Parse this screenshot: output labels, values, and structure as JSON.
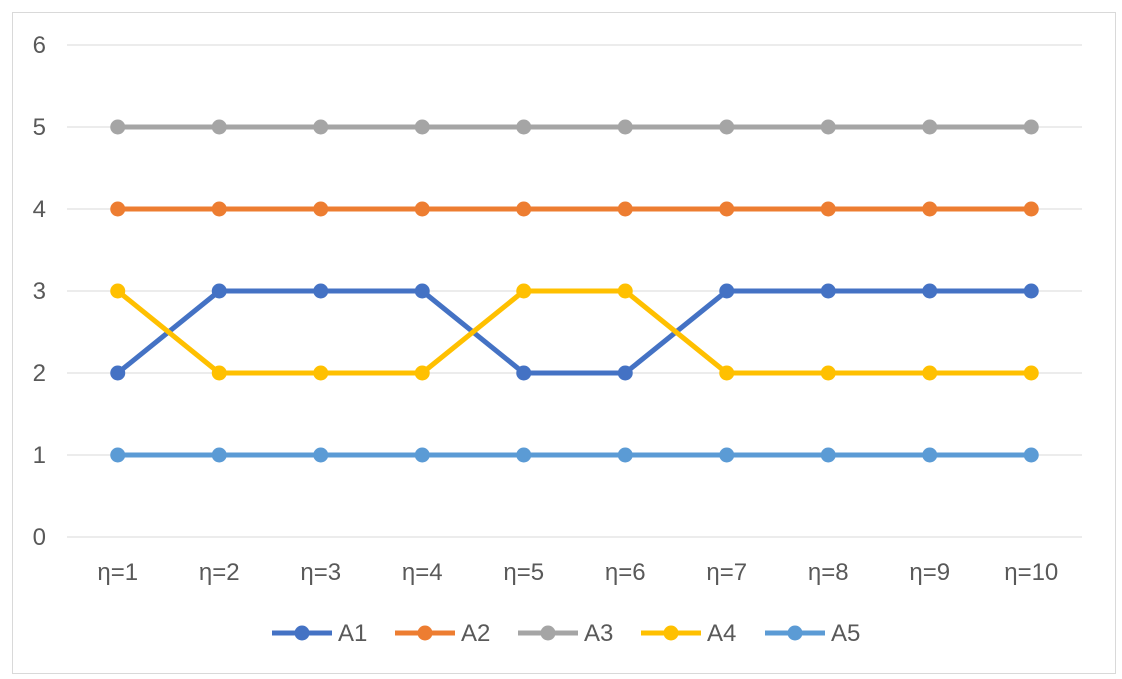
{
  "chart_data": {
    "type": "line",
    "categories": [
      "η=1",
      "η=2",
      "η=3",
      "η=4",
      "η=5",
      "η=6",
      "η=7",
      "η=8",
      "η=9",
      "η=10"
    ],
    "ylim": [
      0,
      6
    ],
    "yticks": [
      "0",
      "1",
      "2",
      "3",
      "4",
      "5",
      "6"
    ],
    "grid": true,
    "legend_position": "bottom",
    "series": [
      {
        "name": "A1",
        "color": "#4472c4",
        "values": [
          2,
          3,
          3,
          3,
          2,
          2,
          3,
          3,
          3,
          3
        ]
      },
      {
        "name": "A2",
        "color": "#ed7d31",
        "values": [
          4,
          4,
          4,
          4,
          4,
          4,
          4,
          4,
          4,
          4
        ]
      },
      {
        "name": "A3",
        "color": "#a5a5a5",
        "values": [
          5,
          5,
          5,
          5,
          5,
          5,
          5,
          5,
          5,
          5
        ]
      },
      {
        "name": "A4",
        "color": "#ffc000",
        "values": [
          3,
          2,
          2,
          2,
          3,
          3,
          2,
          2,
          2,
          2
        ]
      },
      {
        "name": "A5",
        "color": "#5b9bd5",
        "values": [
          1,
          1,
          1,
          1,
          1,
          1,
          1,
          1,
          1,
          1
        ]
      }
    ]
  }
}
